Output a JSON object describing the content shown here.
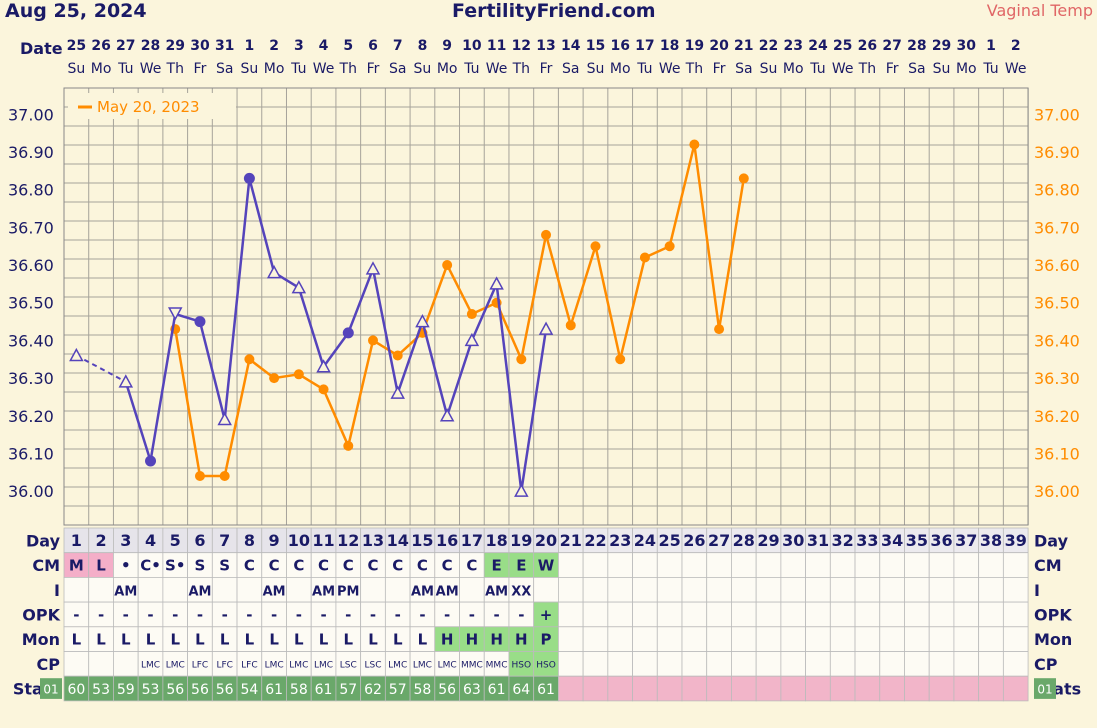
{
  "header": {
    "date": "Aug 25, 2024",
    "site": "FertilityFriend.com",
    "temp_label": "Vaginal Temp"
  },
  "labels": {
    "date": "Date",
    "day": "Day",
    "cm": "CM",
    "i": "I",
    "opk": "OPK",
    "mon": "Mon",
    "cp": "CP",
    "stats": "Stats",
    "stats_left": "01",
    "stats_right": "01"
  },
  "colors": {
    "background": "#fbf5dc",
    "grid": "#a6a39a",
    "current_line": "#5544bb",
    "overlay_line": "#ff8c00",
    "axis_text_left": "#1a1a66",
    "axis_text_right": "#ff8c00",
    "cm_period": "#f4aec8",
    "fertile": "#99dd88",
    "stats_pink": "#f2b5c9",
    "stats_green": "#6aa86a"
  },
  "calendar": {
    "dates": [
      "25",
      "26",
      "27",
      "28",
      "29",
      "30",
      "31",
      "1",
      "2",
      "3",
      "4",
      "5",
      "6",
      "7",
      "8",
      "9",
      "10",
      "11",
      "12",
      "13",
      "14",
      "15",
      "16",
      "17",
      "18",
      "19",
      "20",
      "21",
      "22",
      "23",
      "24",
      "25",
      "26",
      "27",
      "28",
      "29",
      "30",
      "1",
      "2"
    ],
    "weekdays": [
      "Su",
      "Mo",
      "Tu",
      "We",
      "Th",
      "Fr",
      "Sa",
      "Su",
      "Mo",
      "Tu",
      "We",
      "Th",
      "Fr",
      "Sa",
      "Su",
      "Mo",
      "Tu",
      "We",
      "Th",
      "Fr",
      "Sa",
      "Su",
      "Mo",
      "Tu",
      "We",
      "Th",
      "Fr",
      "Sa",
      "Su",
      "Mo",
      "Tu",
      "We",
      "Th",
      "Fr",
      "Sa",
      "Su",
      "Mo",
      "Tu",
      "We"
    ]
  },
  "rows": {
    "cm": [
      "M",
      "L",
      "•",
      "C•",
      "S•",
      "S",
      "S",
      "C",
      "C",
      "C",
      "C",
      "C",
      "C",
      "C",
      "C",
      "C",
      "C",
      "E",
      "E",
      "W",
      "",
      "",
      "",
      "",
      "",
      "",
      "",
      "",
      "",
      "",
      "",
      "",
      "",
      "",
      "",
      "",
      "",
      "",
      ""
    ],
    "i": [
      "",
      "",
      "AM",
      "",
      "",
      "AM",
      "",
      "",
      "AM",
      "",
      "AM",
      "PM",
      "",
      "",
      "AM",
      "AM",
      "",
      "AM",
      "XX",
      "",
      "",
      "",
      "",
      "",
      "",
      "",
      "",
      "",
      "",
      "",
      "",
      "",
      "",
      "",
      "",
      "",
      "",
      "",
      ""
    ],
    "opk": [
      "-",
      "-",
      "-",
      "-",
      "-",
      "-",
      "-",
      "-",
      "-",
      "-",
      "-",
      "-",
      "-",
      "-",
      "-",
      "-",
      "-",
      "-",
      "-",
      "+",
      "",
      "",
      "",
      "",
      "",
      "",
      "",
      "",
      "",
      "",
      "",
      "",
      "",
      "",
      "",
      "",
      "",
      "",
      ""
    ],
    "mon": [
      "L",
      "L",
      "L",
      "L",
      "L",
      "L",
      "L",
      "L",
      "L",
      "L",
      "L",
      "L",
      "L",
      "L",
      "L",
      "H",
      "H",
      "H",
      "H",
      "P",
      "",
      "",
      "",
      "",
      "",
      "",
      "",
      "",
      "",
      "",
      "",
      "",
      "",
      "",
      "",
      "",
      "",
      "",
      ""
    ],
    "cp": [
      "",
      "",
      "",
      "LMC",
      "LMC",
      "LFC",
      "LFC",
      "LFC",
      "LMC",
      "LMC",
      "LMC",
      "LSC",
      "LSC",
      "LMC",
      "LMC",
      "LMC",
      "MMC",
      "MMC",
      "HSO",
      "HSO",
      "",
      "",
      "",
      "",
      "",
      "",
      "",
      "",
      "",
      "",
      "",
      "",
      "",
      "",
      "",
      "",
      "",
      "",
      ""
    ],
    "stats": [
      "60",
      "53",
      "59",
      "53",
      "56",
      "56",
      "56",
      "54",
      "61",
      "58",
      "61",
      "57",
      "62",
      "57",
      "58",
      "56",
      "63",
      "61",
      "64",
      "61",
      "",
      "",
      "",
      "",
      "",
      "",
      "",
      "",
      "",
      "",
      "",
      "",
      "",
      "",
      "",
      "",
      "",
      "",
      ""
    ]
  },
  "chart_data": {
    "type": "line",
    "title": "",
    "xlabel": "Day",
    "ylabel": "",
    "ylim": [
      35.91,
      37.07
    ],
    "yticks": [
      "37.00",
      "36.90",
      "36.80",
      "36.70",
      "36.60",
      "36.50",
      "36.40",
      "36.30",
      "36.20",
      "36.10",
      "36.00"
    ],
    "x": [
      1,
      2,
      3,
      4,
      5,
      6,
      7,
      8,
      9,
      10,
      11,
      12,
      13,
      14,
      15,
      16,
      17,
      18,
      19,
      20,
      21,
      22,
      23,
      24,
      25,
      26,
      27,
      28
    ],
    "series": [
      {
        "name": "",
        "color": "#5544bb",
        "points": [
          {
            "day": 1,
            "temp": 36.36,
            "marker": "triangle"
          },
          {
            "day": 3,
            "temp": 36.29,
            "marker": "triangle"
          },
          {
            "day": 4,
            "temp": 36.08,
            "marker": "dot"
          },
          {
            "day": 5,
            "temp": 36.47,
            "marker": "triangle-down"
          },
          {
            "day": 6,
            "temp": 36.45,
            "marker": "dot"
          },
          {
            "day": 7,
            "temp": 36.19,
            "marker": "triangle"
          },
          {
            "day": 8,
            "temp": 36.83,
            "marker": "dot"
          },
          {
            "day": 9,
            "temp": 36.58,
            "marker": "triangle"
          },
          {
            "day": 10,
            "temp": 36.54,
            "marker": "triangle"
          },
          {
            "day": 11,
            "temp": 36.33,
            "marker": "triangle"
          },
          {
            "day": 12,
            "temp": 36.42,
            "marker": "dot"
          },
          {
            "day": 13,
            "temp": 36.59,
            "marker": "triangle"
          },
          {
            "day": 14,
            "temp": 36.26,
            "marker": "triangle"
          },
          {
            "day": 15,
            "temp": 36.45,
            "marker": "triangle"
          },
          {
            "day": 16,
            "temp": 36.2,
            "marker": "triangle"
          },
          {
            "day": 17,
            "temp": 36.4,
            "marker": "triangle"
          },
          {
            "day": 18,
            "temp": 36.55,
            "marker": "triangle"
          },
          {
            "day": 19,
            "temp": 36.0,
            "marker": "triangle"
          },
          {
            "day": 20,
            "temp": 36.43,
            "marker": "triangle"
          }
        ],
        "dashed_segment": [
          1,
          3
        ]
      },
      {
        "name": "May 20, 2023",
        "color": "#ff8c00",
        "points": [
          {
            "day": 5,
            "temp": 36.43
          },
          {
            "day": 6,
            "temp": 36.04
          },
          {
            "day": 7,
            "temp": 36.04
          },
          {
            "day": 8,
            "temp": 36.35
          },
          {
            "day": 9,
            "temp": 36.3
          },
          {
            "day": 10,
            "temp": 36.31
          },
          {
            "day": 11,
            "temp": 36.27
          },
          {
            "day": 12,
            "temp": 36.12
          },
          {
            "day": 13,
            "temp": 36.4
          },
          {
            "day": 14,
            "temp": 36.36
          },
          {
            "day": 15,
            "temp": 36.42
          },
          {
            "day": 16,
            "temp": 36.6
          },
          {
            "day": 17,
            "temp": 36.47
          },
          {
            "day": 18,
            "temp": 36.5
          },
          {
            "day": 19,
            "temp": 36.35
          },
          {
            "day": 20,
            "temp": 36.68
          },
          {
            "day": 21,
            "temp": 36.44
          },
          {
            "day": 22,
            "temp": 36.65
          },
          {
            "day": 23,
            "temp": 36.35
          },
          {
            "day": 24,
            "temp": 36.62
          },
          {
            "day": 25,
            "temp": 36.65
          },
          {
            "day": 26,
            "temp": 36.92
          },
          {
            "day": 27,
            "temp": 36.43
          },
          {
            "day": 28,
            "temp": 36.83
          }
        ]
      }
    ],
    "legend": "top-left",
    "grid": true
  }
}
